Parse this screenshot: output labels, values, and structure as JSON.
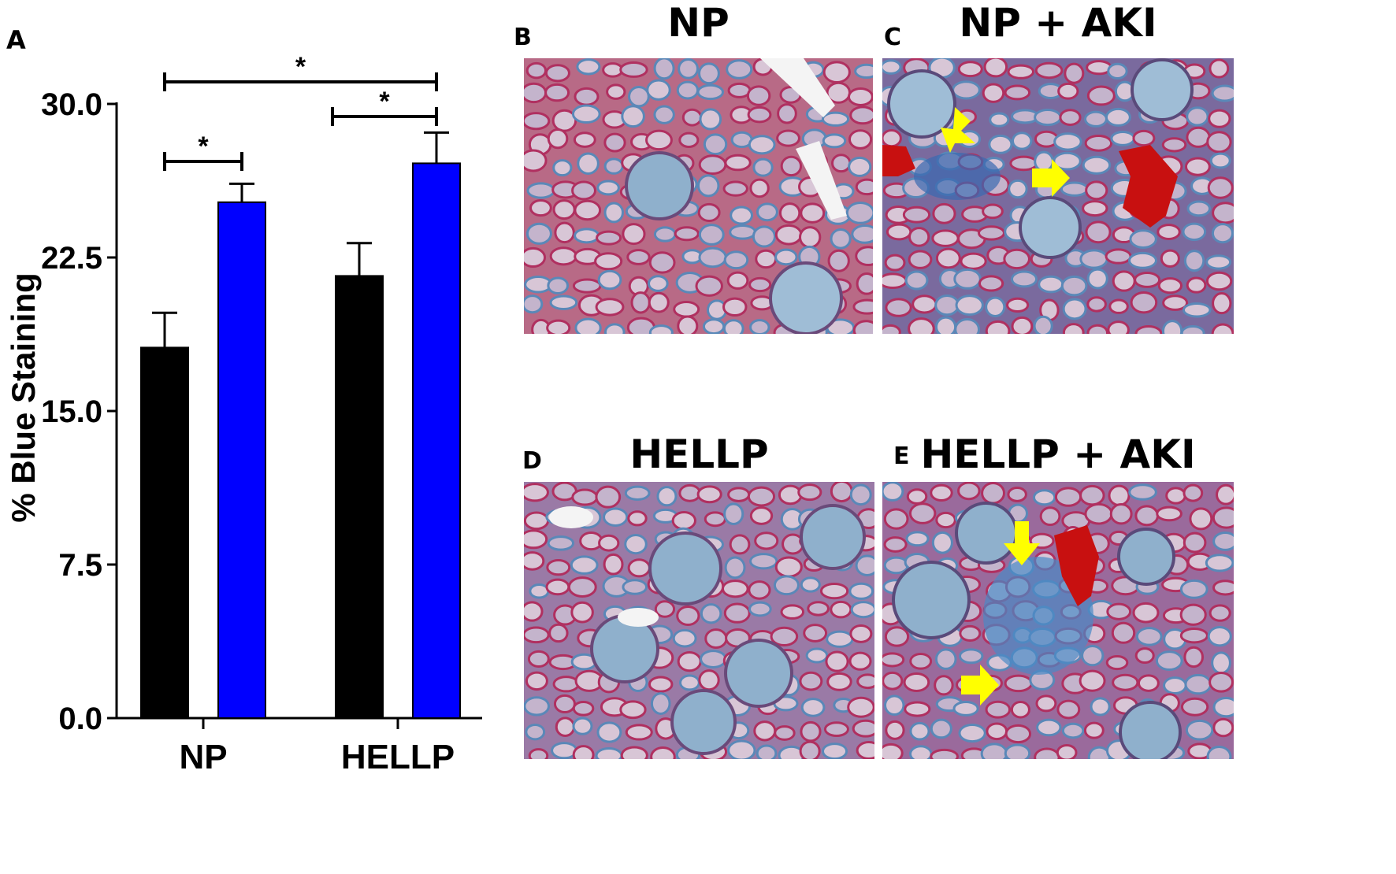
{
  "chart_data": {
    "type": "bar",
    "panel_label": "A",
    "categories": [
      "NP",
      "HELLP"
    ],
    "series": [
      {
        "values": [
          18.1,
          21.6
        ],
        "errors": [
          1.7,
          1.6
        ],
        "color": "#000000"
      },
      {
        "values": [
          25.2,
          27.1
        ],
        "errors": [
          0.9,
          1.5
        ],
        "color": "#0000ff"
      }
    ],
    "ylabel": "% Blue Staining",
    "ylim": [
      0,
      30
    ],
    "yticks": [
      "0.0",
      "7.5",
      "15.0",
      "22.5",
      "30.0"
    ],
    "significance": [
      {
        "from": "NP series 1",
        "to": "NP series 2",
        "label": "*"
      },
      {
        "from": "HELLP series 1",
        "to": "HELLP series 2",
        "label": "*"
      },
      {
        "from": "NP series 1",
        "to": "HELLP series 2",
        "label": "*"
      }
    ],
    "grid": false,
    "legend": "none"
  },
  "panels": {
    "b": {
      "letter": "B",
      "title": "NP"
    },
    "c": {
      "letter": "C",
      "title": "NP + AKI"
    },
    "d": {
      "letter": "D",
      "title": "HELLP"
    },
    "e": {
      "letter": "E",
      "title": "HELLP + AKI"
    }
  },
  "colors": {
    "tissue_red": "#b04a6a",
    "stain_blue": "#5a8fc0",
    "arrow_yellow": "#ffff00",
    "blood_red": "#c81010"
  }
}
